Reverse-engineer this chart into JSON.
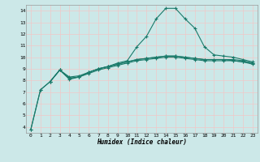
{
  "title": "",
  "xlabel": "Humidex (Indice chaleur)",
  "background_color": "#cce8e8",
  "grid_color": "#f0c8c8",
  "line_color": "#1a7a6a",
  "x_ticks": [
    0,
    1,
    2,
    3,
    4,
    5,
    6,
    7,
    8,
    9,
    10,
    11,
    12,
    13,
    14,
    15,
    16,
    17,
    18,
    19,
    20,
    21,
    22,
    23
  ],
  "y_ticks": [
    4,
    5,
    6,
    7,
    8,
    9,
    10,
    11,
    12,
    13,
    14
  ],
  "ylim": [
    3.5,
    14.5
  ],
  "xlim": [
    -0.5,
    23.5
  ],
  "curve1_x": [
    0,
    1,
    2,
    3,
    4,
    5,
    6,
    7,
    8,
    9,
    10,
    11,
    12,
    13,
    14,
    15,
    16,
    17,
    18,
    19,
    20,
    21,
    22,
    23
  ],
  "curve1_y": [
    3.8,
    7.2,
    7.9,
    8.9,
    8.1,
    8.3,
    8.7,
    9.0,
    9.2,
    9.5,
    9.7,
    10.9,
    11.8,
    13.3,
    14.2,
    14.2,
    13.3,
    12.5,
    10.9,
    10.2,
    10.1,
    10.0,
    9.8,
    9.6
  ],
  "curve2_x": [
    0,
    1,
    2,
    3,
    4,
    5,
    6,
    7,
    8,
    9,
    10,
    11,
    12,
    13,
    14,
    15,
    16,
    17,
    18,
    19,
    20,
    21,
    22,
    23
  ],
  "curve2_y": [
    3.8,
    7.2,
    7.9,
    8.9,
    8.2,
    8.3,
    8.7,
    9.0,
    9.2,
    9.4,
    9.6,
    9.8,
    9.9,
    10.0,
    10.1,
    10.1,
    10.0,
    9.9,
    9.8,
    9.8,
    9.8,
    9.7,
    9.6,
    9.5
  ],
  "curve3_x": [
    2,
    3,
    4,
    5,
    6,
    7,
    8,
    9,
    10,
    11,
    12,
    13,
    14,
    15,
    16,
    17,
    18,
    19,
    20,
    21,
    22,
    23
  ],
  "curve3_y": [
    7.9,
    8.9,
    8.3,
    8.4,
    8.7,
    9.0,
    9.2,
    9.4,
    9.6,
    9.8,
    9.9,
    10.0,
    10.1,
    10.1,
    10.0,
    9.9,
    9.8,
    9.8,
    9.8,
    9.8,
    9.7,
    9.5
  ],
  "curve4_x": [
    2,
    3,
    4,
    5,
    6,
    7,
    8,
    9,
    10,
    11,
    12,
    13,
    14,
    15,
    16,
    17,
    18,
    19,
    20,
    21,
    22,
    23
  ],
  "curve4_y": [
    7.9,
    8.9,
    8.2,
    8.3,
    8.6,
    8.9,
    9.1,
    9.3,
    9.5,
    9.7,
    9.8,
    9.9,
    10.0,
    10.0,
    9.9,
    9.8,
    9.7,
    9.7,
    9.7,
    9.7,
    9.6,
    9.4
  ]
}
